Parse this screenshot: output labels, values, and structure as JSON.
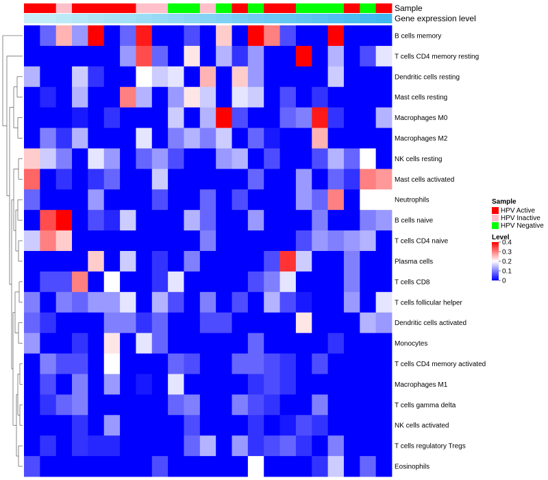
{
  "chart_data": {
    "type": "heatmap",
    "annotation_rows": [
      {
        "label": "Sample"
      },
      {
        "label": "Gene expression level"
      }
    ],
    "sample_groups": [
      "HPV Active",
      "HPV Active",
      "HPV Inactive",
      "HPV Active",
      "HPV Active",
      "HPV Active",
      "HPV Active",
      "HPV Inactive",
      "HPV Inactive",
      "HPV Negative",
      "HPV Negative",
      "HPV Inactive",
      "HPV Negative",
      "HPV Active",
      "HPV Negative",
      "HPV Active",
      "HPV Active",
      "HPV Negative",
      "HPV Negative",
      "HPV Negative",
      "HPV Active",
      "HPV Negative",
      "HPV Active"
    ],
    "expression_levels": [
      0.02,
      0.03,
      0.04,
      0.05,
      0.06,
      0.07,
      0.08,
      0.09,
      0.1,
      0.11,
      0.12,
      0.13,
      0.14,
      0.15,
      0.16,
      0.17,
      0.18,
      0.19,
      0.2,
      0.21,
      0.22,
      0.23,
      0.24
    ],
    "row_labels": [
      "B cells memory",
      "T cells CD4 memory resting",
      "Dendritic cells resting",
      "Mast cells resting",
      "Macrophages M0",
      "Macrophages M2",
      "NK cells resting",
      "Mast cells activated",
      "Neutrophils",
      "B cells naive",
      "T cells CD4 naive",
      "Plasma cells",
      "T cells CD8",
      "T cells follicular helper",
      "Dendritic cells activated",
      "Monocytes",
      "T cells CD4 memory activated",
      "Macrophages M1",
      "T cells gamma delta",
      "NK cells activated",
      "T cells regulatory  Tregs",
      "Eosinophils"
    ],
    "values": [
      [
        0.0,
        0.08,
        0.26,
        0.12,
        0.4,
        0.0,
        0.08,
        0.38,
        0.0,
        0.0,
        0.06,
        0.0,
        0.24,
        0.0,
        0.4,
        0.3,
        0.06,
        0.0,
        0.0,
        0.4,
        0.0,
        0.0,
        0.0
      ],
      [
        0.0,
        0.0,
        0.0,
        0.0,
        0.0,
        0.0,
        0.12,
        0.34,
        0.08,
        0.0,
        0.22,
        0.0,
        0.14,
        0.04,
        0.12,
        0.0,
        0.0,
        0.4,
        0.0,
        0.14,
        0.0,
        0.06,
        0.18
      ],
      [
        0.14,
        0.0,
        0.0,
        0.16,
        0.04,
        0.0,
        0.0,
        0.2,
        0.16,
        0.18,
        0.0,
        0.26,
        0.0,
        0.24,
        0.12,
        0.0,
        0.0,
        0.0,
        0.0,
        0.16,
        0.0,
        0.0,
        0.0
      ],
      [
        0.0,
        0.03,
        0.0,
        0.14,
        0.0,
        0.0,
        0.3,
        0.14,
        0.0,
        0.12,
        0.22,
        0.16,
        0.0,
        0.18,
        0.16,
        0.0,
        0.06,
        0.0,
        0.04,
        0.0,
        0.0,
        0.0,
        0.0
      ],
      [
        0.0,
        0.0,
        0.0,
        0.02,
        0.0,
        0.04,
        0.0,
        0.0,
        0.0,
        0.16,
        0.0,
        0.14,
        0.4,
        0.06,
        0.0,
        0.0,
        0.08,
        0.1,
        0.38,
        0.04,
        0.0,
        0.0,
        0.14
      ],
      [
        0.0,
        0.1,
        0.04,
        0.14,
        0.0,
        0.0,
        0.0,
        0.18,
        0.0,
        0.1,
        0.14,
        0.1,
        0.16,
        0.0,
        0.08,
        0.02,
        0.0,
        0.0,
        0.26,
        0.0,
        0.0,
        0.0,
        0.0
      ],
      [
        0.24,
        0.16,
        0.1,
        0.0,
        0.18,
        0.12,
        0.0,
        0.08,
        0.12,
        0.06,
        0.0,
        0.0,
        0.12,
        0.14,
        0.0,
        0.06,
        0.0,
        0.0,
        0.06,
        0.14,
        0.08,
        0.2,
        0.0
      ],
      [
        0.32,
        0.0,
        0.04,
        0.0,
        0.04,
        0.08,
        0.0,
        0.0,
        0.16,
        0.0,
        0.0,
        0.0,
        0.0,
        0.0,
        0.08,
        0.0,
        0.0,
        0.12,
        0.0,
        0.08,
        0.04,
        0.3,
        0.28
      ],
      [
        0.08,
        0.0,
        0.0,
        0.0,
        0.12,
        0.0,
        0.0,
        0.0,
        0.06,
        0.0,
        0.0,
        0.08,
        0.0,
        0.06,
        0.0,
        0.0,
        0.0,
        0.12,
        0.08,
        0.3,
        0.0,
        0.2,
        0.2
      ],
      [
        0.0,
        0.34,
        0.4,
        0.0,
        0.06,
        0.03,
        0.16,
        0.0,
        0.0,
        0.0,
        0.14,
        0.08,
        0.0,
        0.0,
        0.12,
        0.0,
        0.0,
        0.0,
        0.1,
        0.0,
        0.0,
        0.1,
        0.12
      ],
      [
        0.16,
        0.3,
        0.24,
        0.0,
        0.0,
        0.0,
        0.0,
        0.0,
        0.0,
        0.0,
        0.0,
        0.1,
        0.0,
        0.0,
        0.0,
        0.0,
        0.0,
        0.06,
        0.12,
        0.1,
        0.12,
        0.14,
        0.0
      ],
      [
        0.0,
        0.0,
        0.0,
        0.0,
        0.24,
        0.0,
        0.16,
        0.0,
        0.04,
        0.0,
        0.1,
        0.0,
        0.0,
        0.0,
        0.0,
        0.06,
        0.36,
        0.16,
        0.0,
        0.0,
        0.1,
        0.0,
        0.0
      ],
      [
        0.0,
        0.06,
        0.06,
        0.3,
        0.0,
        0.2,
        0.0,
        0.0,
        0.04,
        0.18,
        0.0,
        0.0,
        0.0,
        0.0,
        0.06,
        0.1,
        0.18,
        0.0,
        0.0,
        0.0,
        0.1,
        0.0,
        0.0
      ],
      [
        0.1,
        0.0,
        0.1,
        0.08,
        0.12,
        0.12,
        0.18,
        0.0,
        0.14,
        0.06,
        0.0,
        0.1,
        0.0,
        0.06,
        0.0,
        0.14,
        0.06,
        0.02,
        0.0,
        0.0,
        0.12,
        0.0,
        0.18
      ],
      [
        0.08,
        0.04,
        0.0,
        0.0,
        0.0,
        0.1,
        0.1,
        0.04,
        0.08,
        0.0,
        0.0,
        0.06,
        0.06,
        0.0,
        0.0,
        0.0,
        0.0,
        0.22,
        0.0,
        0.0,
        0.0,
        0.14,
        0.12
      ],
      [
        0.12,
        0.0,
        0.0,
        0.04,
        0.0,
        0.22,
        0.0,
        0.18,
        0.08,
        0.0,
        0.0,
        0.0,
        0.0,
        0.0,
        0.08,
        0.0,
        0.0,
        0.0,
        0.0,
        0.04,
        0.0,
        0.0,
        0.0
      ],
      [
        0.0,
        0.1,
        0.06,
        0.06,
        0.0,
        0.2,
        0.0,
        0.0,
        0.0,
        0.08,
        0.06,
        0.0,
        0.0,
        0.08,
        0.08,
        0.06,
        0.04,
        0.0,
        0.06,
        0.0,
        0.0,
        0.0,
        0.0
      ],
      [
        0.0,
        0.06,
        0.0,
        0.1,
        0.0,
        0.12,
        0.0,
        0.02,
        0.0,
        0.18,
        0.0,
        0.0,
        0.0,
        0.0,
        0.04,
        0.06,
        0.04,
        0.0,
        0.0,
        0.0,
        0.0,
        0.0,
        0.0
      ],
      [
        0.0,
        0.04,
        0.08,
        0.1,
        0.0,
        0.0,
        0.0,
        0.0,
        0.0,
        0.08,
        0.1,
        0.0,
        0.0,
        0.1,
        0.06,
        0.04,
        0.0,
        0.0,
        0.1,
        0.0,
        0.0,
        0.0,
        0.0
      ],
      [
        0.0,
        0.0,
        0.0,
        0.04,
        0.0,
        0.12,
        0.0,
        0.0,
        0.0,
        0.0,
        0.06,
        0.0,
        0.0,
        0.0,
        0.04,
        0.0,
        0.02,
        0.06,
        0.04,
        0.0,
        0.0,
        0.0,
        0.0
      ],
      [
        0.0,
        0.04,
        0.0,
        0.04,
        0.03,
        0.03,
        0.0,
        0.0,
        0.0,
        0.0,
        0.08,
        0.14,
        0.0,
        0.12,
        0.04,
        0.06,
        0.08,
        0.04,
        0.0,
        0.1,
        0.0,
        0.0,
        0.0
      ],
      [
        0.06,
        0.0,
        0.0,
        0.0,
        0.0,
        0.0,
        0.0,
        0.0,
        0.06,
        0.0,
        0.0,
        0.0,
        0.0,
        0.0,
        0.2,
        0.0,
        0.0,
        0.0,
        0.04,
        0.16,
        0.0,
        0.08,
        0.0
      ]
    ],
    "color_scale": {
      "min": 0,
      "max": 0.4,
      "low": "#0000ff",
      "mid": "#ffffff",
      "high": "#ff0000"
    },
    "legend": {
      "sample_title": "Sample",
      "sample_entries": [
        {
          "label": "HPV Active",
          "color": "#ff0000"
        },
        {
          "label": "HPV Inactive",
          "color": "#ffc0cb"
        },
        {
          "label": "HPV Negative",
          "color": "#00ff00"
        }
      ],
      "level_title": "Level",
      "level_ticks": [
        "0.4",
        "0.3",
        "0.2",
        "0.1",
        "0"
      ],
      "level_tick_values": [
        0.4,
        0.3,
        0.2,
        0.1,
        0
      ]
    },
    "expression_colors": {
      "low": "#c8eef8",
      "high": "#3fb8f0"
    }
  }
}
